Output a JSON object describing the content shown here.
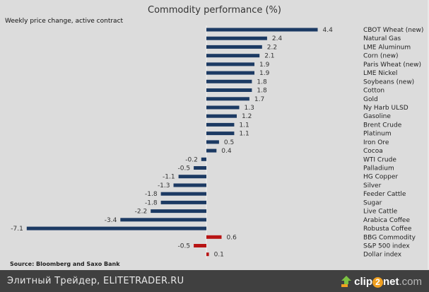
{
  "chart_data": {
    "type": "bar",
    "orientation": "horizontal",
    "title": "Commodity performance (%)",
    "subtitle": "Weekly price change, active contract",
    "source": "Source: Bloomberg and Saxo Bank",
    "xlabel": "",
    "ylabel": "",
    "xlim": [
      -7.1,
      4.4
    ],
    "grid": false,
    "colors": {
      "commodity": "#1c3a63",
      "benchmark": "#b81414"
    },
    "categories": [
      "CBOT Wheat (new)",
      "Natural Gas",
      "LME Aluminum",
      "Corn (new)",
      "Paris Wheat (new)",
      "LME Nickel",
      "Soybeans (new)",
      "Cotton",
      "Gold",
      "Ny Harb ULSD",
      "Gasoline",
      "Brent Crude",
      "Platinum",
      "Iron Ore",
      "Cocoa",
      "WTI Crude",
      "Palladium",
      "HG Copper",
      "Silver",
      "Feeder Cattle",
      "Sugar",
      "Live Cattle",
      "Arabica Coffee",
      "Robusta Coffee",
      "BBG Commodity",
      "S&P 500 index",
      "Dollar index"
    ],
    "values": [
      4.4,
      2.4,
      2.2,
      2.1,
      1.9,
      1.9,
      1.8,
      1.8,
      1.7,
      1.3,
      1.2,
      1.1,
      1.1,
      0.5,
      0.4,
      -0.2,
      -0.5,
      -1.1,
      -1.3,
      -1.8,
      -1.8,
      -2.2,
      -3.4,
      -7.1,
      0.6,
      -0.5,
      0.1
    ],
    "value_labels": [
      "4.4",
      "2.4",
      "2.2",
      "2.1",
      "1.9",
      "1.9",
      "1.8",
      "1.8",
      "1.7",
      "1.3",
      "1.2",
      "1.1",
      "1.1",
      "0.5",
      "0.4",
      "-0.2",
      "-0.5",
      "-1.1",
      "-1.3",
      "-1.8",
      "-1.8",
      "-2.2",
      "-3.4",
      "-7.1",
      "0.6",
      "-0.5",
      "0.1"
    ],
    "groups": [
      "commodity",
      "commodity",
      "commodity",
      "commodity",
      "commodity",
      "commodity",
      "commodity",
      "commodity",
      "commodity",
      "commodity",
      "commodity",
      "commodity",
      "commodity",
      "commodity",
      "commodity",
      "commodity",
      "commodity",
      "commodity",
      "commodity",
      "commodity",
      "commodity",
      "commodity",
      "commodity",
      "commodity",
      "benchmark",
      "benchmark",
      "benchmark"
    ]
  },
  "footer": {
    "caption": "Элитный Трейдер, ELITETRADER.RU",
    "logo_main": "clip",
    "logo_two": "2",
    "logo_net": "net",
    "logo_domain": ".com"
  }
}
